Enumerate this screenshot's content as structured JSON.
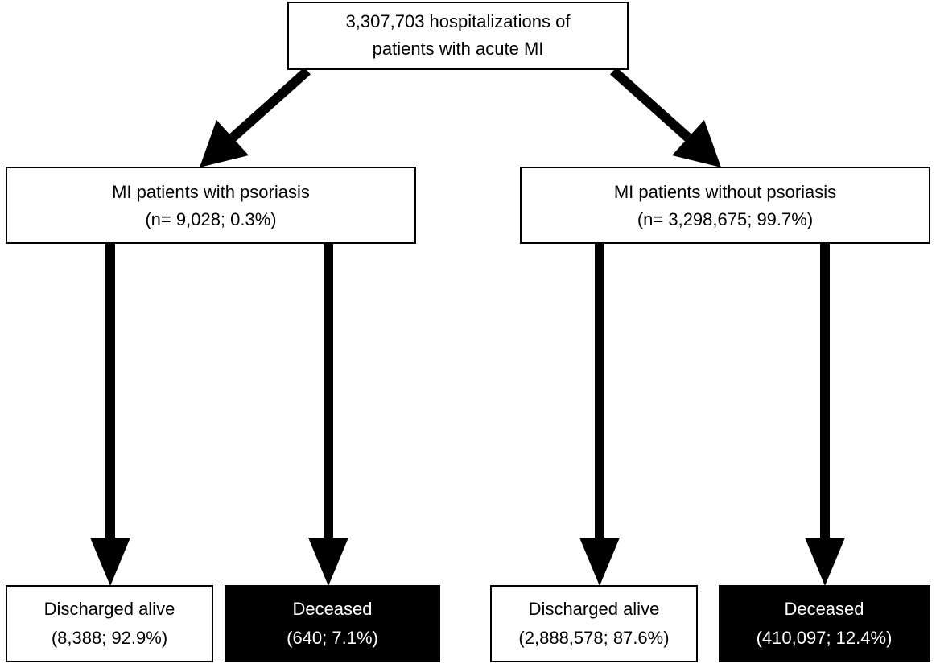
{
  "nodes": [
    {
      "lines": [
        "3,307,703 hospitalizations of",
        "patients with acute MI"
      ]
    },
    {
      "lines": [
        "MI patients with psoriasis",
        "(n= 9,028; 0.3%)"
      ]
    },
    {
      "lines": [
        "MI patients without psoriasis",
        "(n= 3,298,675; 99.7%)"
      ]
    },
    {
      "lines": [
        "Discharged alive",
        "(8,388; 92.9%)"
      ]
    },
    {
      "lines": [
        "Deceased",
        "(640; 7.1%)"
      ]
    },
    {
      "lines": [
        "Discharged alive",
        "(2,888,578; 87.6%)"
      ]
    },
    {
      "lines": [
        "Deceased",
        "(410,097; 12.4%)"
      ]
    }
  ]
}
